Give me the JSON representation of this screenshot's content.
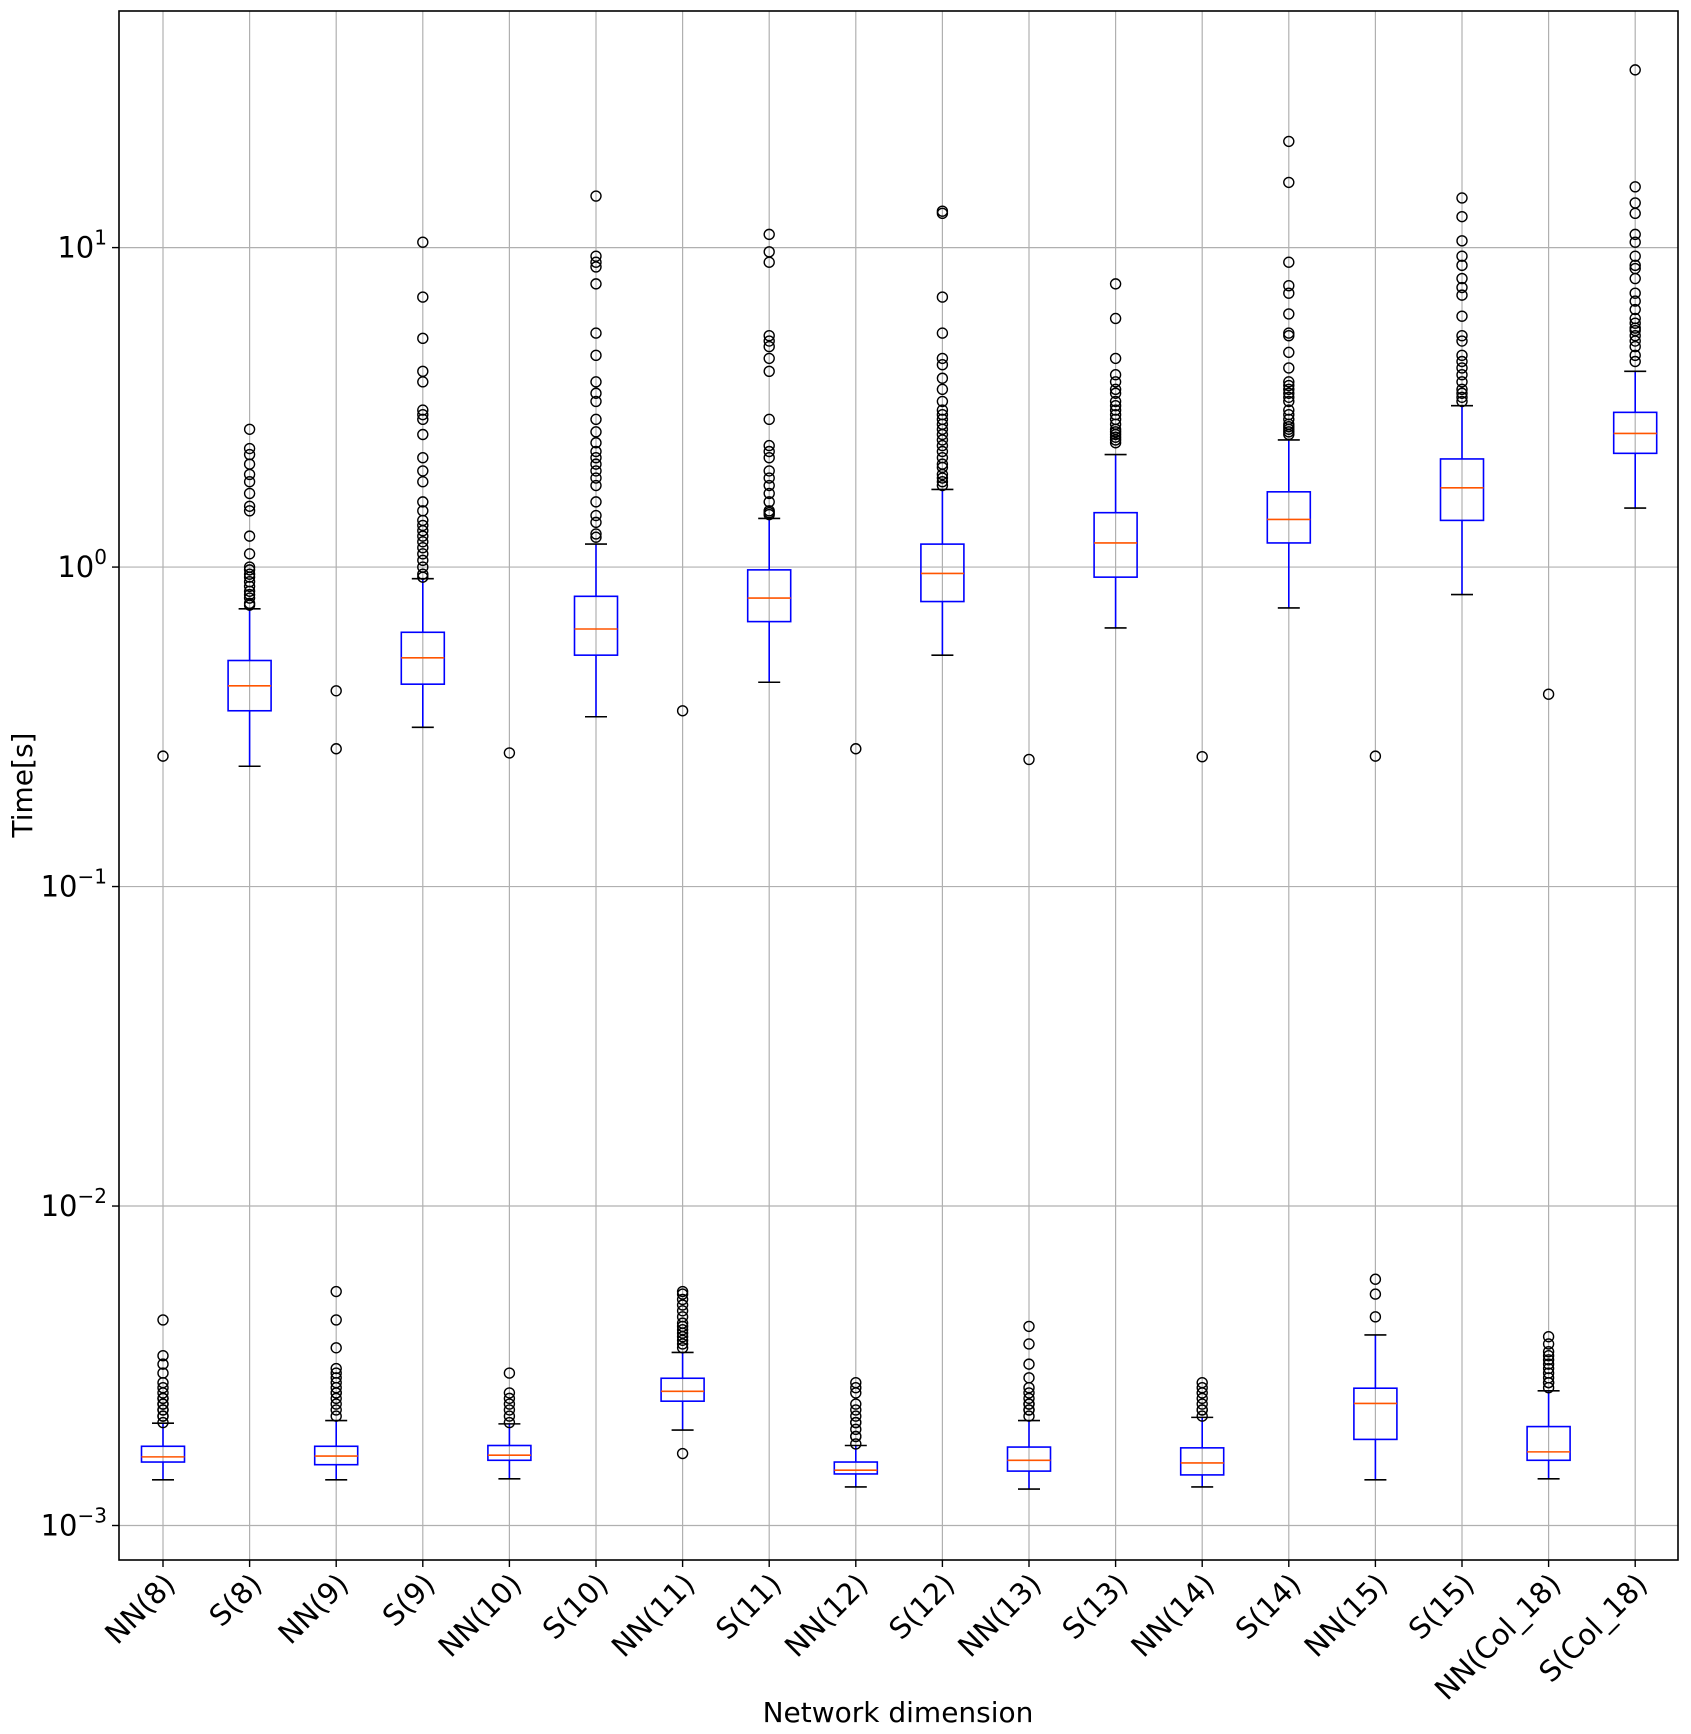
{
  "chart_data": {
    "type": "box",
    "title": "",
    "xlabel": "Network dimension",
    "ylabel": "Time[s]",
    "yscale": "log",
    "ylim": [
      0.00078,
      55
    ],
    "grid": true,
    "yticks": [
      {
        "value": 0.001,
        "base": "10",
        "exp": "−3"
      },
      {
        "value": 0.01,
        "base": "10",
        "exp": "−2"
      },
      {
        "value": 0.1,
        "base": "10",
        "exp": "−1"
      },
      {
        "value": 1,
        "base": "10",
        "exp": "0"
      },
      {
        "value": 10,
        "base": "10",
        "exp": "1"
      }
    ],
    "colors": {
      "box": "#0000ff",
      "median": "#ff5500",
      "cap": "#000000",
      "flier": "#000000",
      "grid": "#b0b0b0"
    },
    "categories": [
      "NN(8)",
      "S(8)",
      "NN(9)",
      "S(9)",
      "NN(10)",
      "S(10)",
      "NN(11)",
      "S(11)",
      "NN(12)",
      "S(12)",
      "NN(13)",
      "S(13)",
      "NN(14)",
      "S(14)",
      "NN(15)",
      "S(15)",
      "NN(Col_18)",
      "S(Col_18)"
    ],
    "boxes": [
      {
        "whislo": 0.00139,
        "q1": 0.00158,
        "med": 0.00164,
        "q3": 0.00177,
        "whishi": 0.00209,
        "fliers": [
          0.256,
          0.0044,
          0.0034,
          0.0032,
          0.003,
          0.0028,
          0.0027,
          0.0026,
          0.0025,
          0.0025,
          0.0024,
          0.0024,
          0.0023,
          0.0023,
          0.0022,
          0.0022,
          0.0021
        ]
      },
      {
        "whislo": 0.238,
        "q1": 0.355,
        "med": 0.425,
        "q3": 0.51,
        "whishi": 0.74,
        "fliers": [
          2.7,
          2.35,
          2.25,
          2.1,
          1.95,
          1.85,
          1.7,
          1.55,
          1.5,
          1.25,
          1.1,
          1.0,
          0.98,
          0.95,
          0.93,
          0.9,
          0.87,
          0.84,
          0.82,
          0.8,
          0.77,
          0.76
        ]
      },
      {
        "whislo": 0.00139,
        "q1": 0.00155,
        "med": 0.00165,
        "q3": 0.00177,
        "whishi": 0.00213,
        "fliers": [
          0.41,
          0.27,
          0.0054,
          0.0044,
          0.0036,
          0.0031,
          0.003,
          0.0029,
          0.0028,
          0.0027,
          0.0026,
          0.0026,
          0.0025,
          0.0024,
          0.0023,
          0.0022
        ]
      },
      {
        "whislo": 0.315,
        "q1": 0.43,
        "med": 0.52,
        "q3": 0.625,
        "whishi": 0.92,
        "fliers": [
          10.4,
          7.0,
          5.2,
          4.1,
          3.8,
          3.1,
          3.0,
          2.9,
          2.6,
          2.2,
          2.0,
          1.85,
          1.6,
          1.5,
          1.4,
          1.35,
          1.3,
          1.25,
          1.2,
          1.15,
          1.1,
          1.05,
          1.0,
          0.95,
          0.93
        ]
      },
      {
        "whislo": 0.0014,
        "q1": 0.0016,
        "med": 0.00166,
        "q3": 0.00178,
        "whishi": 0.00208,
        "fliers": [
          0.262,
          0.003,
          0.0026,
          0.0025,
          0.0024,
          0.0023,
          0.0022,
          0.0021
        ]
      },
      {
        "whislo": 0.34,
        "q1": 0.53,
        "med": 0.64,
        "q3": 0.81,
        "whishi": 1.18,
        "fliers": [
          14.5,
          9.4,
          9.0,
          8.7,
          7.7,
          5.4,
          4.6,
          3.8,
          3.5,
          3.3,
          2.9,
          2.65,
          2.45,
          2.3,
          2.2,
          2.1,
          2.0,
          1.9,
          1.8,
          1.6,
          1.45,
          1.38,
          1.27,
          1.24
        ]
      },
      {
        "whislo": 0.00199,
        "q1": 0.00245,
        "med": 0.00263,
        "q3": 0.00289,
        "whishi": 0.00348,
        "fliers": [
          0.355,
          0.0054,
          0.0053,
          0.0051,
          0.0049,
          0.0047,
          0.0045,
          0.0043,
          0.0042,
          0.0041,
          0.004,
          0.0039,
          0.0038,
          0.0037,
          0.0036,
          0.00168
        ]
      },
      {
        "whislo": 0.436,
        "q1": 0.675,
        "med": 0.8,
        "q3": 0.98,
        "whishi": 1.42,
        "fliers": [
          11.0,
          9.7,
          9.0,
          5.3,
          5.1,
          4.9,
          4.5,
          4.1,
          2.9,
          2.4,
          2.3,
          2.2,
          2.0,
          1.9,
          1.8,
          1.7,
          1.6,
          1.5,
          1.48,
          1.46
        ]
      },
      {
        "whislo": 0.00132,
        "q1": 0.00145,
        "med": 0.00149,
        "q3": 0.00158,
        "whishi": 0.00178,
        "fliers": [
          0.27,
          0.0028,
          0.0027,
          0.0026,
          0.0024,
          0.0023,
          0.0022,
          0.0021,
          0.0021,
          0.002,
          0.0019,
          0.0019,
          0.0018
        ]
      },
      {
        "whislo": 0.53,
        "q1": 0.78,
        "med": 0.955,
        "q3": 1.18,
        "whishi": 1.75,
        "fliers": [
          13.0,
          12.8,
          7.0,
          5.4,
          4.5,
          4.3,
          3.9,
          3.6,
          3.3,
          3.1,
          3.0,
          2.9,
          2.8,
          2.7,
          2.6,
          2.5,
          2.4,
          2.3,
          2.2,
          2.1,
          2.05,
          1.95,
          1.9,
          1.85,
          1.8
        ]
      },
      {
        "whislo": 0.0013,
        "q1": 0.00148,
        "med": 0.0016,
        "q3": 0.00176,
        "whishi": 0.00213,
        "fliers": [
          0.25,
          0.0042,
          0.0037,
          0.0032,
          0.0029,
          0.0027,
          0.0026,
          0.0025,
          0.0024,
          0.0024,
          0.0023,
          0.0023,
          0.0022
        ]
      },
      {
        "whislo": 0.645,
        "q1": 0.93,
        "med": 1.19,
        "q3": 1.48,
        "whishi": 2.25,
        "fliers": [
          7.7,
          6.0,
          4.5,
          4.0,
          3.8,
          3.6,
          3.5,
          3.3,
          3.2,
          3.1,
          3.0,
          2.9,
          2.8,
          2.7,
          2.65,
          2.6,
          2.55,
          2.5,
          2.45
        ]
      },
      {
        "whislo": 0.00132,
        "q1": 0.00144,
        "med": 0.00157,
        "q3": 0.00175,
        "whishi": 0.00218,
        "fliers": [
          0.255,
          0.0028,
          0.0027,
          0.0026,
          0.0025,
          0.0024,
          0.0023,
          0.0023,
          0.0022
        ]
      },
      {
        "whislo": 0.745,
        "q1": 1.19,
        "med": 1.41,
        "q3": 1.72,
        "whishi": 2.5,
        "fliers": [
          21.5,
          16.0,
          9.0,
          7.6,
          7.2,
          6.2,
          5.4,
          5.3,
          4.7,
          4.2,
          3.8,
          3.7,
          3.6,
          3.5,
          3.4,
          3.3,
          3.1,
          3.0,
          2.9,
          2.8,
          2.75,
          2.7,
          2.65,
          2.6
        ]
      },
      {
        "whislo": 0.00139,
        "q1": 0.00186,
        "med": 0.00241,
        "q3": 0.00269,
        "whishi": 0.00395,
        "fliers": [
          0.256,
          0.0059,
          0.0053,
          0.0045
        ]
      },
      {
        "whislo": 0.82,
        "q1": 1.4,
        "med": 1.77,
        "q3": 2.18,
        "whishi": 3.2,
        "fliers": [
          14.3,
          12.5,
          10.5,
          9.4,
          8.8,
          8.0,
          7.5,
          7.1,
          6.1,
          5.3,
          5.1,
          4.6,
          4.4,
          4.2,
          4.0,
          3.8,
          3.6,
          3.5,
          3.4,
          3.3
        ]
      },
      {
        "whislo": 0.0014,
        "q1": 0.0016,
        "med": 0.0017,
        "q3": 0.00204,
        "whishi": 0.00264,
        "fliers": [
          0.4,
          0.0039,
          0.0037,
          0.0035,
          0.0034,
          0.0033,
          0.0032,
          0.0031,
          0.003,
          0.0029,
          0.0028,
          0.0028,
          0.0027
        ]
      },
      {
        "whislo": 1.53,
        "q1": 2.27,
        "med": 2.62,
        "q3": 3.05,
        "whishi": 4.1,
        "fliers": [
          36.0,
          15.5,
          13.8,
          12.8,
          11.0,
          10.4,
          9.4,
          8.8,
          8.6,
          8.0,
          7.2,
          6.8,
          6.4,
          6.0,
          5.8,
          5.6,
          5.5,
          5.3,
          5.1,
          4.9,
          4.6,
          4.4
        ]
      }
    ]
  }
}
